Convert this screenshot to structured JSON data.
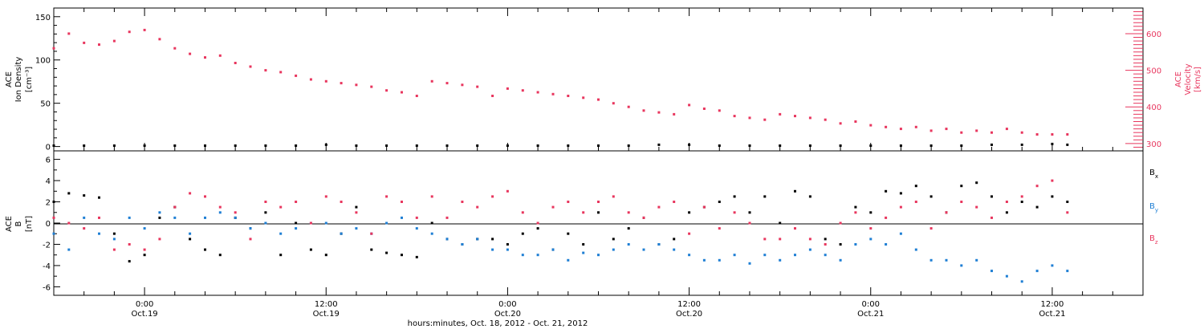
{
  "colors": {
    "velocity": "#e8365e",
    "density": "#000000",
    "bx": "#000000",
    "by": "#1f7fd4",
    "bz": "#e8365e"
  },
  "chart_data": [
    {
      "type": "scatter",
      "panel": "top",
      "ylabel_left": [
        "ACE",
        "Ion Density",
        "[cm⁻³]"
      ],
      "ylabel_right": [
        "ACE",
        "Velocity",
        "[km/s]"
      ],
      "ylim_left": [
        -5,
        160
      ],
      "ylim_right": [
        280,
        670
      ],
      "left_ticks": [
        "0",
        "50",
        "100",
        "150"
      ],
      "right_ticks": [
        "300",
        "400",
        "500",
        "600"
      ],
      "x_range_hours": [
        0,
        72
      ],
      "series": [
        {
          "axis": "right",
          "color": "velocity",
          "x_hours": [
            0,
            1,
            2,
            3,
            4,
            5,
            6,
            7,
            8,
            9,
            10,
            11,
            12,
            13,
            14,
            15,
            16,
            17,
            18,
            19,
            20,
            21,
            22,
            23,
            24,
            25,
            26,
            27,
            28,
            29,
            30,
            31,
            32,
            33,
            34,
            35,
            36,
            37,
            38,
            39,
            40,
            41,
            42,
            43,
            44,
            45,
            46,
            47,
            48,
            49,
            50,
            51,
            52,
            53,
            54,
            55,
            56,
            57,
            58,
            59,
            60,
            61,
            62,
            63,
            64,
            65,
            66,
            67
          ],
          "values": [
            560,
            600,
            575,
            570,
            580,
            605,
            610,
            585,
            560,
            545,
            535,
            540,
            520,
            510,
            500,
            495,
            485,
            475,
            470,
            465,
            460,
            455,
            445,
            440,
            430,
            470,
            465,
            460,
            455,
            430,
            450,
            445,
            440,
            435,
            430,
            425,
            420,
            410,
            400,
            390,
            385,
            380,
            405,
            395,
            390,
            375,
            370,
            365,
            380,
            375,
            370,
            365,
            355,
            360,
            350,
            345,
            340,
            345,
            335,
            340,
            330,
            335,
            330,
            340,
            330,
            325,
            325,
            325
          ]
        },
        {
          "axis": "left",
          "color": "density",
          "x_hours": [
            0,
            2,
            4,
            6,
            8,
            10,
            12,
            14,
            16,
            18,
            20,
            22,
            24,
            26,
            28,
            30,
            32,
            34,
            36,
            38,
            40,
            42,
            44,
            46,
            48,
            50,
            52,
            54,
            56,
            58,
            60,
            62,
            64,
            66,
            67
          ],
          "values": [
            1,
            1,
            1,
            1,
            1,
            1,
            1,
            1,
            1,
            2,
            1,
            1,
            1,
            1,
            1,
            1,
            1,
            1,
            1,
            1,
            2,
            2,
            1,
            1,
            1,
            1,
            1,
            1,
            1,
            1,
            1,
            2,
            2,
            3,
            2
          ]
        }
      ]
    },
    {
      "type": "scatter",
      "panel": "bottom",
      "ylabel": [
        "ACE",
        "B",
        "[nT]"
      ],
      "ylim": [
        -6.8,
        6.8
      ],
      "ticks": [
        "-6",
        "-4",
        "-2",
        "0",
        "2",
        "4",
        "6"
      ],
      "x_range_hours": [
        0,
        72
      ],
      "xlabel": "hours:minutes, Oct. 18, 2012 - Oct. 21, 2012",
      "x_tick_labels": [
        {
          "hour": 6,
          "time": "0:00",
          "date": "Oct.19"
        },
        {
          "hour": 18,
          "time": "12:00",
          "date": "Oct.19"
        },
        {
          "hour": 30,
          "time": "0:00",
          "date": "Oct.20"
        },
        {
          "hour": 42,
          "time": "12:00",
          "date": "Oct.20"
        },
        {
          "hour": 54,
          "time": "0:00",
          "date": "Oct.21"
        },
        {
          "hour": 66,
          "time": "12:00",
          "date": "Oct.21"
        }
      ],
      "legend": [
        {
          "label": "B",
          "sub": "x",
          "color": "bx"
        },
        {
          "label": "B",
          "sub": "y",
          "color": "by"
        },
        {
          "label": "B",
          "sub": "z",
          "color": "bz"
        }
      ],
      "series": [
        {
          "name": "Bx",
          "color": "bx",
          "x_hours": [
            0,
            1,
            2,
            3,
            4,
            5,
            6,
            7,
            8,
            9,
            10,
            11,
            12,
            13,
            14,
            15,
            16,
            17,
            18,
            19,
            20,
            21,
            22,
            23,
            24,
            25,
            26,
            27,
            28,
            29,
            30,
            31,
            32,
            33,
            34,
            35,
            36,
            37,
            38,
            39,
            40,
            41,
            42,
            43,
            44,
            45,
            46,
            47,
            48,
            49,
            50,
            51,
            52,
            53,
            54,
            55,
            56,
            57,
            58,
            59,
            60,
            61,
            62,
            63,
            64,
            65,
            66,
            67
          ],
          "values": [
            2.0,
            2.8,
            2.6,
            2.4,
            -1.0,
            -3.6,
            -3.0,
            0.5,
            1.5,
            -1.5,
            -2.5,
            -3.0,
            0.5,
            -0.5,
            1.0,
            -3.0,
            0.0,
            -2.5,
            -3.0,
            -1.0,
            1.5,
            -2.5,
            -2.8,
            -3.0,
            -3.2,
            0.0,
            -1.5,
            -2.0,
            -1.5,
            -1.5,
            -2.0,
            -1.0,
            -0.5,
            -2.5,
            -1.0,
            -2.0,
            1.0,
            -1.5,
            -0.5,
            0.5,
            -2.0,
            -1.5,
            1.0,
            1.5,
            2.0,
            2.5,
            1.0,
            2.5,
            0.0,
            3.0,
            2.5,
            -1.5,
            -2.0,
            1.5,
            1.0,
            3.0,
            2.8,
            3.5,
            2.5,
            1.0,
            3.5,
            3.8,
            2.5,
            1.0,
            2.0,
            1.5,
            2.5,
            2.0
          ]
        },
        {
          "name": "By",
          "color": "by",
          "x_hours": [
            0,
            1,
            2,
            3,
            4,
            5,
            6,
            7,
            8,
            9,
            10,
            11,
            12,
            13,
            14,
            15,
            16,
            17,
            18,
            19,
            20,
            21,
            22,
            23,
            24,
            25,
            26,
            27,
            28,
            29,
            30,
            31,
            32,
            33,
            34,
            35,
            36,
            37,
            38,
            39,
            40,
            41,
            42,
            43,
            44,
            45,
            46,
            47,
            48,
            49,
            50,
            51,
            52,
            53,
            54,
            55,
            56,
            57,
            58,
            59,
            60,
            61,
            62,
            63,
            64,
            65,
            66,
            67
          ],
          "values": [
            -1.0,
            -2.5,
            0.5,
            -1.0,
            -1.5,
            0.5,
            -0.5,
            1.0,
            0.5,
            -1.0,
            0.5,
            1.0,
            0.5,
            -0.5,
            0.0,
            -1.0,
            -0.5,
            0.0,
            0.0,
            -1.0,
            -0.5,
            -1.0,
            0.0,
            0.5,
            -0.5,
            -1.0,
            -1.5,
            -2.0,
            -1.5,
            -2.5,
            -2.5,
            -3.0,
            -3.0,
            -2.5,
            -3.5,
            -2.8,
            -3.0,
            -2.5,
            -2.0,
            -2.5,
            -2.0,
            -2.5,
            -3.0,
            -3.5,
            -3.5,
            -3.0,
            -3.8,
            -3.0,
            -3.5,
            -3.0,
            -2.5,
            -3.0,
            -3.5,
            -2.0,
            -1.5,
            -2.0,
            -1.0,
            -2.5,
            -3.5,
            -3.5,
            -4.0,
            -3.5,
            -4.5,
            -5.0,
            -5.5,
            -4.5,
            -4.0,
            -4.5
          ]
        },
        {
          "name": "Bz",
          "color": "bz",
          "x_hours": [
            0,
            1,
            2,
            3,
            4,
            5,
            6,
            7,
            8,
            9,
            10,
            11,
            12,
            13,
            14,
            15,
            16,
            17,
            18,
            19,
            20,
            21,
            22,
            23,
            24,
            25,
            26,
            27,
            28,
            29,
            30,
            31,
            32,
            33,
            34,
            35,
            36,
            37,
            38,
            39,
            40,
            41,
            42,
            43,
            44,
            45,
            46,
            47,
            48,
            49,
            50,
            51,
            52,
            53,
            54,
            55,
            56,
            57,
            58,
            59,
            60,
            61,
            62,
            63,
            64,
            65,
            66,
            67
          ],
          "values": [
            0.5,
            0.0,
            -0.5,
            0.5,
            -2.5,
            -2.0,
            -2.5,
            -1.5,
            1.5,
            2.8,
            2.5,
            1.5,
            1.0,
            -1.5,
            2.0,
            1.5,
            2.0,
            0.0,
            2.5,
            2.0,
            1.0,
            -1.0,
            2.5,
            2.0,
            0.5,
            2.5,
            0.5,
            2.0,
            1.5,
            2.5,
            3.0,
            1.0,
            0.0,
            1.5,
            2.0,
            1.0,
            2.0,
            2.5,
            1.0,
            0.5,
            1.5,
            2.0,
            -1.0,
            1.5,
            -0.5,
            1.0,
            0.0,
            -1.5,
            -1.5,
            -0.5,
            -1.5,
            -2.0,
            0.0,
            1.0,
            -0.5,
            0.5,
            1.5,
            2.0,
            -0.5,
            1.0,
            2.0,
            1.5,
            0.5,
            2.0,
            2.5,
            3.5,
            4.0,
            1.0
          ]
        }
      ]
    }
  ]
}
